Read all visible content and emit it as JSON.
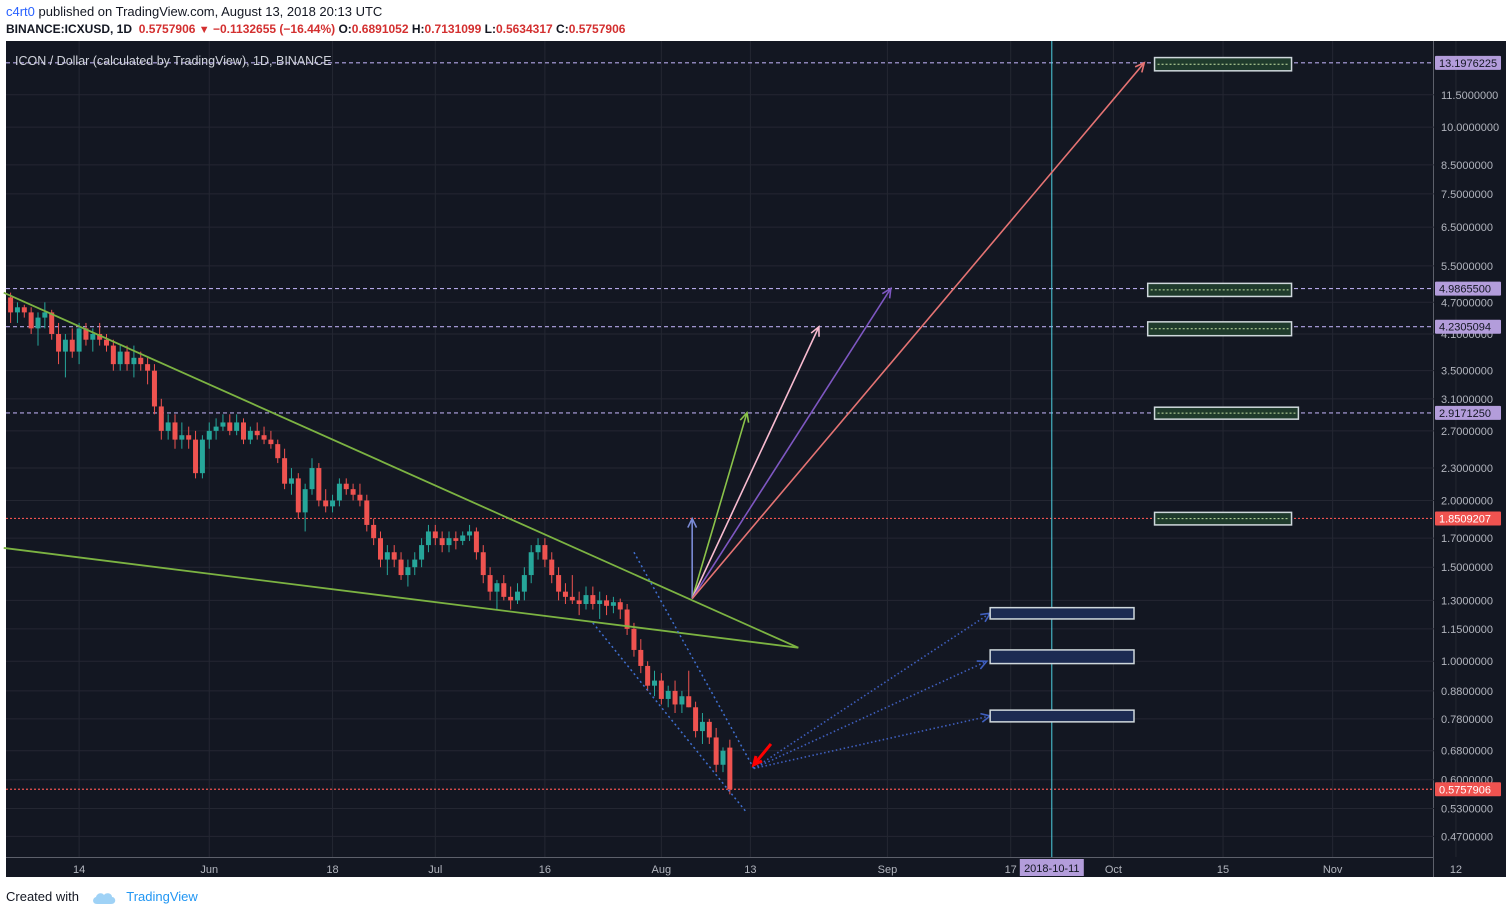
{
  "header": {
    "author": "c4rt0",
    "published_text": "published on TradingView.com, August 13, 2018 20:13 UTC",
    "symbol": "BINANCE:ICXUSD, 1D",
    "last": "0.5757906",
    "change": "−0.1132655 (−16.44%)",
    "o_label": "O:",
    "o_value": "0.6891052",
    "h_label": "H:",
    "h_value": "0.7131099",
    "l_label": "L:",
    "l_value": "0.5634317",
    "c_label": "C:",
    "c_value": "0.5757906"
  },
  "footer": {
    "created_with": "Created with",
    "brand": "TradingView"
  },
  "colors": {
    "background": "#131722",
    "up": "#26a69a",
    "down": "#ef5350",
    "trend": "#7cb342",
    "dash_lavender": "#b3a6e6",
    "dash_red": "#ef5350"
  },
  "chart_data": {
    "type": "candlestick",
    "title": "ICON / Dollar (calculated by TradingView), 1D, BINANCE",
    "scale": "log",
    "ylim": [
      0.43,
      14.5
    ],
    "y_ticks": [
      "11.5000000",
      "10.0000000",
      "8.5000000",
      "7.5000000",
      "6.5000000",
      "5.5000000",
      "4.7000000",
      "4.1000000",
      "3.5000000",
      "3.1000000",
      "2.7000000",
      "2.3000000",
      "2.0000000",
      "1.7000000",
      "1.5000000",
      "1.3000000",
      "1.1500000",
      "1.0000000",
      "0.8800000",
      "0.7800000",
      "0.6800000",
      "0.6000000",
      "0.5300000",
      "0.4700000"
    ],
    "x_ticks": [
      "14",
      "Jun",
      "18",
      "Jul",
      "16",
      "Aug",
      "13",
      "Sep",
      "17",
      "Oct",
      "15",
      "Nov",
      "12"
    ],
    "price_levels": [
      {
        "label": "13.1976225",
        "value": 13.1976225,
        "style": "lavender"
      },
      {
        "label": "4.9865500",
        "value": 4.98655,
        "style": "lavender"
      },
      {
        "label": "4.2305094",
        "value": 4.2305094,
        "style": "lavender"
      },
      {
        "label": "2.9171250",
        "value": 2.917125,
        "style": "lavender"
      },
      {
        "label": "1.8509207",
        "value": 1.8509207,
        "style": "red"
      },
      {
        "label": "0.5757906",
        "value": 0.5757906,
        "style": "red"
      }
    ],
    "vertical_marker": {
      "label": "2018-10-11",
      "day": 152
    },
    "candles": [
      [
        0,
        4.8,
        4.9,
        4.3,
        4.5
      ],
      [
        1,
        4.5,
        4.7,
        4.3,
        4.6
      ],
      [
        2,
        4.6,
        4.65,
        4.4,
        4.5
      ],
      [
        3,
        4.5,
        4.6,
        4.1,
        4.2
      ],
      [
        4,
        4.2,
        4.5,
        3.9,
        4.4
      ],
      [
        5,
        4.4,
        4.7,
        4.2,
        4.5
      ],
      [
        6,
        4.5,
        4.55,
        4.0,
        4.1
      ],
      [
        7,
        4.1,
        4.3,
        3.6,
        3.8
      ],
      [
        8,
        3.8,
        4.1,
        3.4,
        4.0
      ],
      [
        9,
        4.0,
        4.2,
        3.7,
        3.8
      ],
      [
        10,
        3.8,
        4.3,
        3.6,
        4.2
      ],
      [
        11,
        4.2,
        4.3,
        3.9,
        4.0
      ],
      [
        12,
        4.0,
        4.2,
        3.8,
        4.1
      ],
      [
        13,
        4.1,
        4.3,
        3.9,
        4.0
      ],
      [
        14,
        4.0,
        4.1,
        3.8,
        3.9
      ],
      [
        15,
        3.9,
        4.0,
        3.5,
        3.6
      ],
      [
        16,
        3.6,
        3.9,
        3.5,
        3.8
      ],
      [
        17,
        3.8,
        3.9,
        3.5,
        3.6
      ],
      [
        18,
        3.6,
        3.9,
        3.4,
        3.7
      ],
      [
        19,
        3.7,
        3.8,
        3.5,
        3.6
      ],
      [
        20,
        3.6,
        3.7,
        3.3,
        3.5
      ],
      [
        21,
        3.5,
        3.6,
        2.9,
        3.0
      ],
      [
        22,
        3.0,
        3.1,
        2.6,
        2.7
      ],
      [
        23,
        2.7,
        2.9,
        2.6,
        2.8
      ],
      [
        24,
        2.8,
        2.9,
        2.5,
        2.6
      ],
      [
        25,
        2.6,
        2.8,
        2.5,
        2.65
      ],
      [
        26,
        2.65,
        2.75,
        2.5,
        2.6
      ],
      [
        27,
        2.6,
        2.7,
        2.2,
        2.25
      ],
      [
        28,
        2.25,
        2.65,
        2.2,
        2.6
      ],
      [
        29,
        2.6,
        2.8,
        2.5,
        2.7
      ],
      [
        30,
        2.7,
        2.85,
        2.6,
        2.75
      ],
      [
        31,
        2.75,
        2.9,
        2.7,
        2.8
      ],
      [
        32,
        2.8,
        2.9,
        2.65,
        2.7
      ],
      [
        33,
        2.7,
        2.9,
        2.65,
        2.8
      ],
      [
        34,
        2.8,
        2.85,
        2.55,
        2.6
      ],
      [
        35,
        2.6,
        2.75,
        2.55,
        2.7
      ],
      [
        36,
        2.7,
        2.8,
        2.6,
        2.65
      ],
      [
        37,
        2.65,
        2.75,
        2.55,
        2.6
      ],
      [
        38,
        2.6,
        2.7,
        2.5,
        2.55
      ],
      [
        39,
        2.55,
        2.6,
        2.35,
        2.4
      ],
      [
        40,
        2.4,
        2.5,
        2.1,
        2.15
      ],
      [
        41,
        2.15,
        2.3,
        2.05,
        2.2
      ],
      [
        42,
        2.2,
        2.25,
        1.85,
        1.9
      ],
      [
        43,
        1.9,
        2.15,
        1.75,
        2.1
      ],
      [
        44,
        2.1,
        2.4,
        2.05,
        2.3
      ],
      [
        45,
        2.3,
        2.35,
        1.95,
        2.0
      ],
      [
        46,
        2.0,
        2.1,
        1.9,
        1.95
      ],
      [
        47,
        1.95,
        2.05,
        1.9,
        2.0
      ],
      [
        48,
        2.0,
        2.2,
        1.95,
        2.15
      ],
      [
        49,
        2.15,
        2.2,
        2.05,
        2.1
      ],
      [
        50,
        2.1,
        2.15,
        2.0,
        2.05
      ],
      [
        51,
        2.05,
        2.15,
        1.95,
        2.0
      ],
      [
        52,
        2.0,
        2.05,
        1.75,
        1.8
      ],
      [
        53,
        1.8,
        1.85,
        1.65,
        1.7
      ],
      [
        54,
        1.7,
        1.75,
        1.5,
        1.55
      ],
      [
        55,
        1.55,
        1.65,
        1.45,
        1.6
      ],
      [
        56,
        1.6,
        1.65,
        1.5,
        1.55
      ],
      [
        57,
        1.55,
        1.6,
        1.42,
        1.45
      ],
      [
        58,
        1.45,
        1.55,
        1.38,
        1.5
      ],
      [
        59,
        1.5,
        1.6,
        1.45,
        1.55
      ],
      [
        60,
        1.55,
        1.7,
        1.5,
        1.65
      ],
      [
        61,
        1.65,
        1.8,
        1.6,
        1.75
      ],
      [
        62,
        1.75,
        1.8,
        1.65,
        1.7
      ],
      [
        63,
        1.7,
        1.75,
        1.6,
        1.65
      ],
      [
        64,
        1.65,
        1.75,
        1.6,
        1.7
      ],
      [
        65,
        1.7,
        1.75,
        1.62,
        1.68
      ],
      [
        66,
        1.68,
        1.75,
        1.65,
        1.72
      ],
      [
        67,
        1.72,
        1.8,
        1.68,
        1.75
      ],
      [
        68,
        1.75,
        1.78,
        1.55,
        1.6
      ],
      [
        69,
        1.6,
        1.65,
        1.4,
        1.45
      ],
      [
        70,
        1.45,
        1.5,
        1.3,
        1.35
      ],
      [
        71,
        1.35,
        1.42,
        1.25,
        1.4
      ],
      [
        72,
        1.4,
        1.45,
        1.3,
        1.32
      ],
      [
        73,
        1.32,
        1.38,
        1.25,
        1.3
      ],
      [
        74,
        1.3,
        1.4,
        1.28,
        1.35
      ],
      [
        75,
        1.35,
        1.5,
        1.3,
        1.45
      ],
      [
        76,
        1.45,
        1.65,
        1.4,
        1.6
      ],
      [
        77,
        1.6,
        1.7,
        1.55,
        1.65
      ],
      [
        78,
        1.65,
        1.7,
        1.5,
        1.55
      ],
      [
        79,
        1.55,
        1.6,
        1.4,
        1.45
      ],
      [
        80,
        1.45,
        1.5,
        1.3,
        1.35
      ],
      [
        81,
        1.35,
        1.4,
        1.28,
        1.32
      ],
      [
        82,
        1.32,
        1.45,
        1.28,
        1.3
      ],
      [
        83,
        1.3,
        1.35,
        1.22,
        1.28
      ],
      [
        84,
        1.28,
        1.38,
        1.25,
        1.33
      ],
      [
        85,
        1.33,
        1.38,
        1.25,
        1.28
      ],
      [
        86,
        1.28,
        1.35,
        1.2,
        1.3
      ],
      [
        87,
        1.3,
        1.33,
        1.22,
        1.27
      ],
      [
        88,
        1.27,
        1.32,
        1.23,
        1.29
      ],
      [
        89,
        1.29,
        1.31,
        1.2,
        1.25
      ],
      [
        90,
        1.25,
        1.28,
        1.12,
        1.15
      ],
      [
        91,
        1.15,
        1.18,
        1.02,
        1.05
      ],
      [
        92,
        1.05,
        1.1,
        0.95,
        0.98
      ],
      [
        93,
        0.98,
        1.0,
        0.88,
        0.9
      ],
      [
        94,
        0.9,
        0.96,
        0.86,
        0.92
      ],
      [
        95,
        0.92,
        0.95,
        0.83,
        0.85
      ],
      [
        96,
        0.85,
        0.9,
        0.82,
        0.88
      ],
      [
        97,
        0.88,
        0.92,
        0.8,
        0.83
      ],
      [
        98,
        0.83,
        0.88,
        0.8,
        0.86
      ],
      [
        99,
        0.86,
        0.96,
        0.82,
        0.82
      ],
      [
        100,
        0.82,
        0.84,
        0.72,
        0.74
      ],
      [
        101,
        0.74,
        0.8,
        0.7,
        0.77
      ],
      [
        102,
        0.77,
        0.78,
        0.7,
        0.72
      ],
      [
        103,
        0.72,
        0.75,
        0.62,
        0.64
      ],
      [
        104,
        0.64,
        0.69,
        0.62,
        0.68
      ],
      [
        105,
        0.6891052,
        0.7131099,
        0.5634317,
        0.5757906
      ]
    ],
    "drawings": {
      "trendlines": [
        {
          "from": [
            -1,
            4.9
          ],
          "to": [
            115,
            1.06
          ]
        },
        {
          "from": [
            -1,
            1.63
          ],
          "to": [
            115,
            1.06
          ]
        }
      ],
      "arrows": [
        {
          "from": [
            99.5,
            1.31
          ],
          "to": [
            99.5,
            1.85
          ],
          "color": "#7b8bd6"
        },
        {
          "from": [
            99.5,
            1.31
          ],
          "to": [
            107.5,
            2.92
          ],
          "color": "#8bc34a"
        },
        {
          "from": [
            99.5,
            1.31
          ],
          "to": [
            118,
            4.23
          ],
          "color": "#f8bbd0"
        },
        {
          "from": [
            99.5,
            1.31
          ],
          "to": [
            128.5,
            4.99
          ],
          "color": "#7e57c2"
        },
        {
          "from": [
            99.5,
            1.31
          ],
          "to": [
            165.5,
            13.2
          ],
          "color": "#e57373"
        },
        {
          "from": [
            108.5,
            0.63
          ],
          "to": [
            143,
            1.23
          ],
          "color": "#3f5fbf",
          "dotted": true
        },
        {
          "from": [
            108.5,
            0.63
          ],
          "to": [
            142.5,
            1.0
          ],
          "color": "#3f5fbf",
          "dotted": true
        },
        {
          "from": [
            108.5,
            0.63
          ],
          "to": [
            143,
            0.79
          ],
          "color": "#3f5fbf",
          "dotted": true
        },
        {
          "from": [
            111,
            0.7
          ],
          "to": [
            108.5,
            0.64
          ],
          "color": "#ff0000",
          "heavy": true
        }
      ],
      "channel": [
        {
          "from": [
            91,
            1.6
          ],
          "to": [
            108.5,
            0.63
          ]
        },
        {
          "from": [
            85,
            1.18
          ],
          "to": [
            107.5,
            0.52
          ]
        }
      ],
      "target_boxes": [
        {
          "from": [
            167,
            13.5
          ],
          "to": [
            187,
            12.75
          ],
          "style": "green"
        },
        {
          "from": [
            166,
            5.1
          ],
          "to": [
            187,
            4.82
          ],
          "style": "green"
        },
        {
          "from": [
            166,
            4.32
          ],
          "to": [
            187,
            4.07
          ],
          "style": "green"
        },
        {
          "from": [
            167,
            2.99
          ],
          "to": [
            188,
            2.84
          ],
          "style": "green"
        },
        {
          "from": [
            167,
            1.9
          ],
          "to": [
            187,
            1.8
          ],
          "style": "green"
        },
        {
          "from": [
            143,
            1.26
          ],
          "to": [
            164,
            1.2
          ],
          "style": "blue"
        },
        {
          "from": [
            143,
            1.05
          ],
          "to": [
            164,
            0.99
          ],
          "style": "blue"
        },
        {
          "from": [
            143,
            0.81
          ],
          "to": [
            164,
            0.77
          ],
          "style": "blue"
        }
      ]
    }
  }
}
